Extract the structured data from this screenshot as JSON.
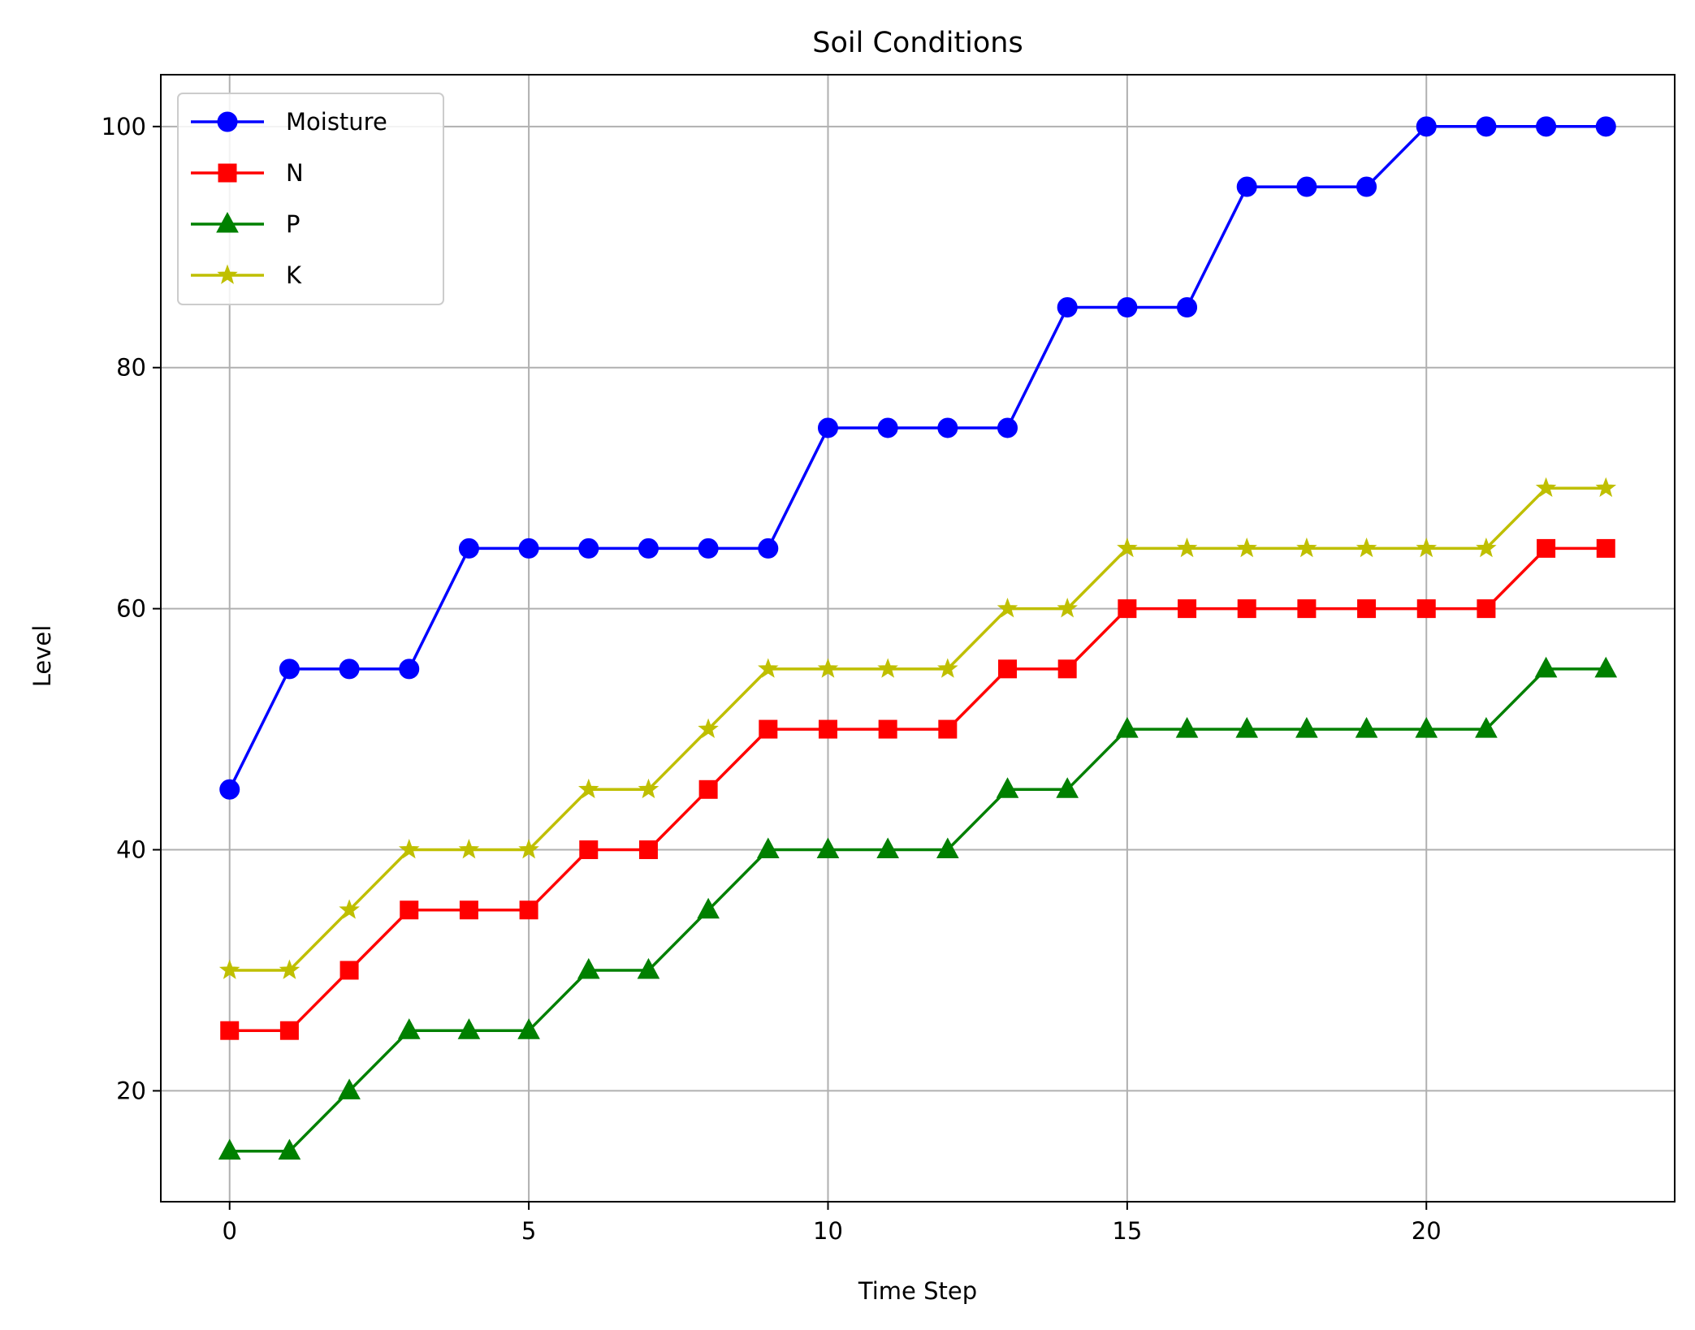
{
  "chart_data": {
    "type": "line",
    "title": "Soil Conditions",
    "xlabel": "Time Step",
    "ylabel": "Level",
    "x": [
      0,
      1,
      2,
      3,
      4,
      5,
      6,
      7,
      8,
      9,
      10,
      11,
      12,
      13,
      14,
      15,
      16,
      17,
      18,
      19,
      20,
      21,
      22,
      23
    ],
    "xlim": [
      -1.15,
      24.15
    ],
    "ylim": [
      10.8,
      104.3
    ],
    "xticks": [
      0,
      5,
      10,
      15,
      20
    ],
    "yticks": [
      20,
      40,
      60,
      80,
      100
    ],
    "grid": true,
    "legend_position": "upper-left",
    "series": [
      {
        "name": "Moisture",
        "color": "#0000ff",
        "marker": "circle",
        "values": [
          45,
          55,
          55,
          55,
          65,
          65,
          65,
          65,
          65,
          65,
          75,
          75,
          75,
          75,
          85,
          85,
          85,
          95,
          95,
          95,
          100,
          100,
          100,
          100
        ]
      },
      {
        "name": "N",
        "color": "#ff0000",
        "marker": "square",
        "values": [
          25,
          25,
          30,
          35,
          35,
          35,
          40,
          40,
          45,
          50,
          50,
          50,
          50,
          55,
          55,
          60,
          60,
          60,
          60,
          60,
          60,
          60,
          65,
          65
        ]
      },
      {
        "name": "P",
        "color": "#008000",
        "marker": "triangle",
        "values": [
          15,
          15,
          20,
          25,
          25,
          25,
          30,
          30,
          35,
          40,
          40,
          40,
          40,
          45,
          45,
          50,
          50,
          50,
          50,
          50,
          50,
          50,
          55,
          55
        ]
      },
      {
        "name": "K",
        "color": "#bfbf00",
        "marker": "star",
        "values": [
          30,
          30,
          35,
          40,
          40,
          40,
          45,
          45,
          50,
          55,
          55,
          55,
          55,
          60,
          60,
          65,
          65,
          65,
          65,
          65,
          65,
          65,
          70,
          70
        ]
      }
    ]
  }
}
